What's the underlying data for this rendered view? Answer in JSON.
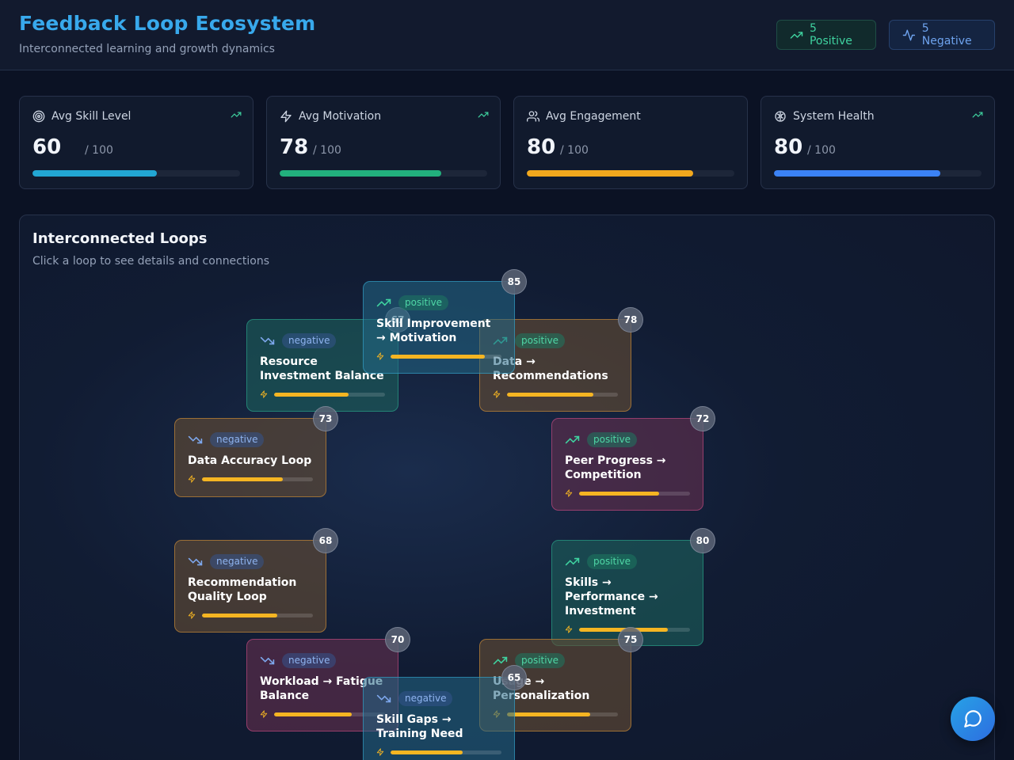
{
  "header": {
    "title": "Feedback Loop Ecosystem",
    "subtitle": "Interconnected learning and growth dynamics",
    "positive_label": "5 Positive",
    "negative_label": "5 Negative"
  },
  "stats": [
    {
      "label": "Avg Skill Level",
      "value": "60",
      "unit": "/ 100",
      "percent": 60,
      "color": "#22a6d3",
      "icon": "target-icon"
    },
    {
      "label": "Avg Motivation",
      "value": "78",
      "unit": "/ 100",
      "percent": 78,
      "color": "#22b07d",
      "icon": "zap-icon"
    },
    {
      "label": "Avg Engagement",
      "value": "80",
      "unit": "/ 100",
      "percent": 80,
      "color": "#f2a81d",
      "icon": "users-icon"
    },
    {
      "label": "System Health",
      "value": "80",
      "unit": "/ 100",
      "percent": 80,
      "color": "#3b82f6",
      "icon": "brain-icon"
    }
  ],
  "panel": {
    "title": "Interconnected Loops",
    "subtitle": "Click a loop to see details and connections"
  },
  "loops": [
    {
      "type": "negative",
      "name": "Resource Investment Balance",
      "strength": 67,
      "color": "teal"
    },
    {
      "type": "negative",
      "name": "Data Accuracy Loop",
      "strength": 73,
      "color": "amber"
    },
    {
      "type": "negative",
      "name": "Recommendation Quality Loop",
      "strength": 68,
      "color": "amber"
    },
    {
      "type": "negative",
      "name": "Workload → Fatigue Balance",
      "strength": 70,
      "color": "pink"
    },
    {
      "type": "positive",
      "name": "Data → Recommendations",
      "strength": 78,
      "color": "amber"
    },
    {
      "type": "positive",
      "name": "Peer Progress → Competition",
      "strength": 72,
      "color": "pink"
    },
    {
      "type": "positive",
      "name": "Skills → Performance → Investment",
      "strength": 80,
      "color": "teal"
    },
    {
      "type": "positive",
      "name": "Usage → Personalization",
      "strength": 75,
      "color": "amber"
    },
    {
      "type": "negative",
      "name": "Skill Gaps → Training Need",
      "strength": 65,
      "color": "cyan"
    },
    {
      "type": "positive",
      "name": "Skill Improvement → Motivation",
      "strength": 85,
      "color": "cyan"
    }
  ],
  "colors": {
    "accent": "#38a9ec",
    "positive": "#3fd3a0",
    "negative": "#6ea3ee",
    "strength_bar": "#f5b522"
  }
}
